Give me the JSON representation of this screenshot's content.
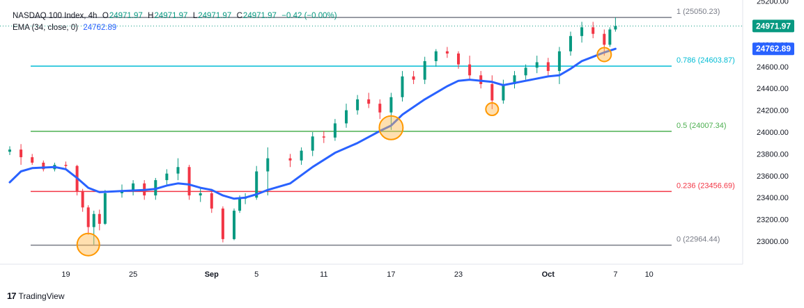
{
  "header": {
    "symbol": "NASDAQ 100 Index, 4h",
    "o_label": "O",
    "o": "24971.97",
    "h_label": "H",
    "h": "24971.97",
    "l_label": "L",
    "l": "24971.97",
    "c_label": "C",
    "c": "24971.97",
    "change": "−0.42 (−0.00%)",
    "ema_label": "EMA (34, close, 0)",
    "ema_value": "24762.89"
  },
  "price_labels": {
    "last_price": "24971.97",
    "ema_price": "24762.89"
  },
  "footer": {
    "brand": "TradingView"
  },
  "colors": {
    "up": "#089981",
    "down": "#f23645",
    "ema": "#2962ff",
    "fib_1": "#787b86",
    "fib_0786": "#00bcd4",
    "fib_05": "#4caf50",
    "fib_0236": "#f23645",
    "fib_0": "#787b86",
    "highlight": "#ff9800"
  },
  "chart_data": {
    "type": "candlestick",
    "title": "NASDAQ 100 Index, 4h",
    "y_axis": {
      "ticks": [
        23000,
        23200,
        23400,
        23600,
        23800,
        24000,
        24200,
        24400,
        24600,
        24800,
        25000,
        25200
      ],
      "tick_labels": [
        "23000.00",
        "23200.00",
        "23400.00",
        "23600.00",
        "23800.00",
        "24000.00",
        "24200.00",
        "24400.00",
        "24600.00",
        "24800.00",
        "25000.00",
        "25200.00"
      ],
      "range": [
        22790,
        25210
      ],
      "side": "right"
    },
    "x_axis": {
      "tick_labels": [
        "19",
        "25",
        "Sep",
        "5",
        "11",
        "17",
        "23",
        "Oct",
        "7",
        "10"
      ],
      "range": [
        "Aug 14",
        "Oct 10"
      ]
    },
    "fibonacci_levels": [
      {
        "ratio": "1",
        "label": "1 (25050.23)",
        "value": 25050.23
      },
      {
        "ratio": "0.786",
        "label": "0.786 (24603.87)",
        "value": 24603.87
      },
      {
        "ratio": "0.5",
        "label": "0.5 (24007.34)",
        "value": 24007.34
      },
      {
        "ratio": "0.236",
        "label": "0.236 (23456.69)",
        "value": 23456.69
      },
      {
        "ratio": "0",
        "label": "0 (22964.44)",
        "value": 22964.44
      }
    ],
    "highlighted_points": [
      {
        "x": "Aug 21",
        "y": 22970
      },
      {
        "x": "Sep 17",
        "y": 24040
      },
      {
        "x": "Sep 26",
        "y": 24210
      },
      {
        "x": "Oct 6",
        "y": 24710
      }
    ],
    "ema_series": {
      "name": "EMA (34, close, 0)",
      "points": [
        [
          "Aug 14",
          23540
        ],
        [
          "Aug 15",
          23640
        ],
        [
          "Aug 16",
          23670
        ],
        [
          "Aug 18",
          23680
        ],
        [
          "Aug 19",
          23660
        ],
        [
          "Aug 20",
          23580
        ],
        [
          "Aug 21",
          23490
        ],
        [
          "Aug 22",
          23450
        ],
        [
          "Aug 24",
          23460
        ],
        [
          "Aug 26",
          23470
        ],
        [
          "Aug 27",
          23480
        ],
        [
          "Aug 28",
          23510
        ],
        [
          "Aug 29",
          23530
        ],
        [
          "Aug 30",
          23520
        ],
        [
          "Aug 31",
          23490
        ],
        [
          "Sep 1",
          23470
        ],
        [
          "Sep 2",
          23420
        ],
        [
          "Sep 3",
          23390
        ],
        [
          "Sep 4",
          23400
        ],
        [
          "Sep 5",
          23430
        ],
        [
          "Sep 6",
          23470
        ],
        [
          "Sep 8",
          23530
        ],
        [
          "Sep 10",
          23680
        ],
        [
          "Sep 12",
          23810
        ],
        [
          "Sep 14",
          23900
        ],
        [
          "Sep 16",
          24010
        ],
        [
          "Sep 17",
          24060
        ],
        [
          "Sep 18",
          24160
        ],
        [
          "Sep 20",
          24300
        ],
        [
          "Sep 22",
          24420
        ],
        [
          "Sep 23",
          24470
        ],
        [
          "Sep 24",
          24480
        ],
        [
          "Sep 26",
          24460
        ],
        [
          "Sep 27",
          24430
        ],
        [
          "Sep 29",
          24470
        ],
        [
          "Oct 1",
          24510
        ],
        [
          "Oct 2",
          24520
        ],
        [
          "Oct 3",
          24580
        ],
        [
          "Oct 4",
          24650
        ],
        [
          "Oct 5",
          24690
        ],
        [
          "Oct 6",
          24730
        ],
        [
          "Oct 7",
          24762.89
        ]
      ]
    },
    "candles": [
      [
        "Aug 14",
        23820,
        23870,
        23790,
        23840
      ],
      [
        "Aug 15",
        23840,
        23890,
        23700,
        23770
      ],
      [
        "Aug 16",
        23770,
        23800,
        23700,
        23720
      ],
      [
        "Aug 17",
        23720,
        23740,
        23640,
        23660
      ],
      [
        "Aug 18",
        23660,
        23720,
        23640,
        23700
      ],
      [
        "Aug 19",
        23700,
        23730,
        23660,
        23690
      ],
      [
        "Aug 20",
        23690,
        23700,
        23420,
        23460
      ],
      [
        "Aug 20b",
        23460,
        23480,
        23270,
        23310
      ],
      [
        "Aug 21",
        23310,
        23330,
        23060,
        23130
      ],
      [
        "Aug 21b",
        23130,
        23280,
        22970,
        23250
      ],
      [
        "Aug 22",
        23250,
        23290,
        23100,
        23160
      ],
      [
        "Aug 22b",
        23160,
        23470,
        23150,
        23440
      ],
      [
        "Aug 24",
        23440,
        23520,
        23400,
        23460
      ],
      [
        "Aug 25",
        23460,
        23560,
        23420,
        23530
      ],
      [
        "Aug 26",
        23530,
        23560,
        23380,
        23420
      ],
      [
        "Aug 27",
        23420,
        23580,
        23380,
        23560
      ],
      [
        "Aug 28",
        23560,
        23660,
        23520,
        23620
      ],
      [
        "Aug 29",
        23620,
        23760,
        23560,
        23680
      ],
      [
        "Aug 30",
        23680,
        23700,
        23380,
        23420
      ],
      [
        "Aug 31",
        23420,
        23480,
        23360,
        23440
      ],
      [
        "Sep 1",
        23440,
        23480,
        23260,
        23300
      ],
      [
        "Sep 2",
        23300,
        23320,
        22990,
        23020
      ],
      [
        "Sep 3",
        23020,
        23300,
        23010,
        23280
      ],
      [
        "Sep 3b",
        23280,
        23420,
        23260,
        23390
      ],
      [
        "Sep 4",
        23390,
        23440,
        23340,
        23400
      ],
      [
        "Sep 5",
        23400,
        23690,
        23380,
        23640
      ],
      [
        "Sep 6",
        23640,
        23860,
        23420,
        23760
      ],
      [
        "Sep 8",
        23760,
        23800,
        23680,
        23740
      ],
      [
        "Sep 9",
        23740,
        23860,
        23700,
        23830
      ],
      [
        "Sep 10",
        23830,
        24000,
        23780,
        23960
      ],
      [
        "Sep 11",
        23960,
        24010,
        23900,
        23950
      ],
      [
        "Sep 12",
        23950,
        24120,
        23920,
        24080
      ],
      [
        "Sep 13",
        24080,
        24260,
        24040,
        24200
      ],
      [
        "Sep 14",
        24200,
        24340,
        24160,
        24300
      ],
      [
        "Sep 15",
        24300,
        24360,
        24220,
        24260
      ],
      [
        "Sep 16",
        24260,
        24300,
        24120,
        24180
      ],
      [
        "Sep 17",
        24180,
        24360,
        24020,
        24320
      ],
      [
        "Sep 18",
        24320,
        24560,
        24280,
        24510
      ],
      [
        "Sep 19",
        24510,
        24560,
        24440,
        24480
      ],
      [
        "Sep 20",
        24480,
        24690,
        24440,
        24650
      ],
      [
        "Sep 21",
        24650,
        24760,
        24600,
        24740
      ],
      [
        "Sep 22",
        24740,
        24780,
        24680,
        24720
      ],
      [
        "Sep 23",
        24720,
        24740,
        24580,
        24620
      ],
      [
        "Sep 24",
        24620,
        24700,
        24480,
        24520
      ],
      [
        "Sep 25",
        24520,
        24560,
        24400,
        24440
      ],
      [
        "Sep 26",
        24440,
        24520,
        24210,
        24290
      ],
      [
        "Sep 27",
        24290,
        24480,
        24260,
        24440
      ],
      [
        "Sep 28",
        24440,
        24560,
        24400,
        24520
      ],
      [
        "Sep 29",
        24520,
        24620,
        24480,
        24590
      ],
      [
        "Sep 30",
        24590,
        24700,
        24540,
        24640
      ],
      [
        "Oct 1",
        24640,
        24680,
        24520,
        24560
      ],
      [
        "Oct 2",
        24560,
        24780,
        24440,
        24740
      ],
      [
        "Oct 3",
        24740,
        24920,
        24700,
        24880
      ],
      [
        "Oct 4",
        24880,
        25010,
        24820,
        24960
      ],
      [
        "Oct 5",
        24960,
        25010,
        24860,
        24900
      ],
      [
        "Oct 6",
        24900,
        24940,
        24700,
        24800
      ],
      [
        "Oct 6b",
        24800,
        24960,
        24780,
        24940
      ],
      [
        "Oct 7",
        24940,
        25050,
        24920,
        24971.97
      ]
    ]
  }
}
